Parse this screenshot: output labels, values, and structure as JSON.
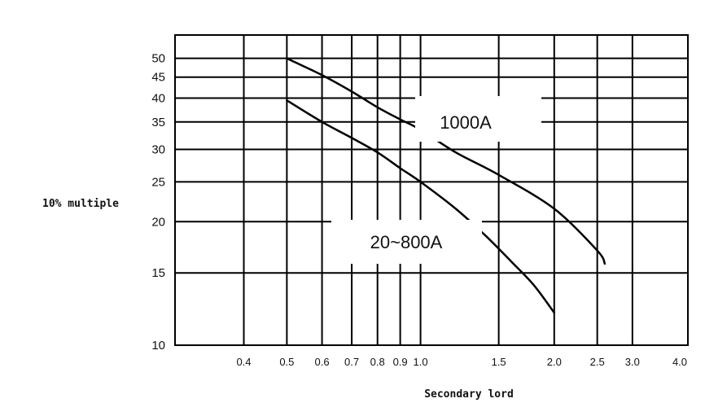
{
  "chart_data": {
    "type": "line",
    "xlabel": "Secondary lord",
    "ylabel": "10% multiple",
    "x_scale": "log",
    "y_scale": "log",
    "xlim": [
      0.28,
      4.0
    ],
    "ylim": [
      10,
      57
    ],
    "grid": true,
    "x_ticks": [
      0.4,
      0.5,
      0.6,
      0.7,
      0.8,
      0.9,
      1.0,
      1.5,
      2.0,
      2.5,
      3.0,
      4.0
    ],
    "x_tick_labels": [
      "0.4",
      "0.5",
      "0.6",
      "0.7",
      "0.8",
      "0.9",
      "1.0",
      "1.5",
      "2.0",
      "2.5",
      "3.0",
      "4.0"
    ],
    "y_ticks": [
      10,
      15,
      20,
      25,
      30,
      35,
      40,
      45,
      50
    ],
    "y_tick_labels": [
      "10",
      "15",
      "20",
      "25",
      "30",
      "35",
      "40",
      "45",
      "50"
    ],
    "series": [
      {
        "name": "1000A",
        "x": [
          0.5,
          0.6,
          0.7,
          0.8,
          0.9,
          1.0,
          1.2,
          1.5,
          2.0,
          2.5,
          2.6
        ],
        "y": [
          50,
          45.5,
          41.5,
          38,
          35.5,
          33.5,
          29.5,
          26,
          21.5,
          17,
          15.8
        ]
      },
      {
        "name": "20~800A",
        "x": [
          0.5,
          0.6,
          0.7,
          0.8,
          0.9,
          1.0,
          1.2,
          1.4,
          1.6,
          1.8,
          2.0
        ],
        "y": [
          39.5,
          35,
          32,
          29.5,
          27,
          25,
          21.5,
          18.5,
          16,
          14,
          12
        ]
      }
    ]
  }
}
